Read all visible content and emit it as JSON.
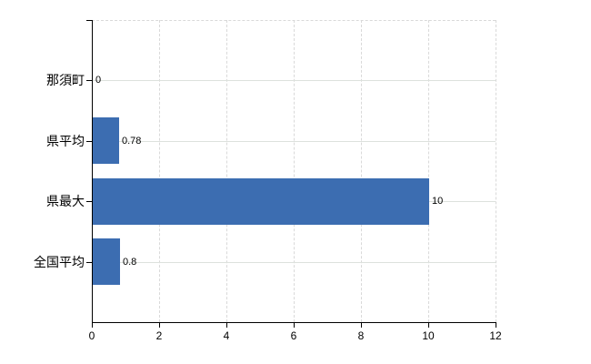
{
  "chart_data": {
    "type": "bar",
    "orientation": "horizontal",
    "title": "",
    "xlabel": "",
    "ylabel": "",
    "categories": [
      "那須町",
      "県平均",
      "県最大",
      "全国平均"
    ],
    "values": [
      0,
      0.78,
      10,
      0.8
    ],
    "value_labels": [
      "0",
      "0.78",
      "10",
      "0.8"
    ],
    "xlim": [
      0,
      12
    ],
    "x_ticks": [
      0,
      2,
      4,
      6,
      8,
      10,
      12
    ],
    "x_tick_labels": [
      "0",
      "2",
      "4",
      "6",
      "8",
      "10",
      "12"
    ],
    "grid": true,
    "legend": false,
    "bar_color": "#3c6db1",
    "axis_color": "#000000",
    "gridline_color": "#d9d9d9",
    "background_color": "#ffffff",
    "text_color": "#000000"
  }
}
